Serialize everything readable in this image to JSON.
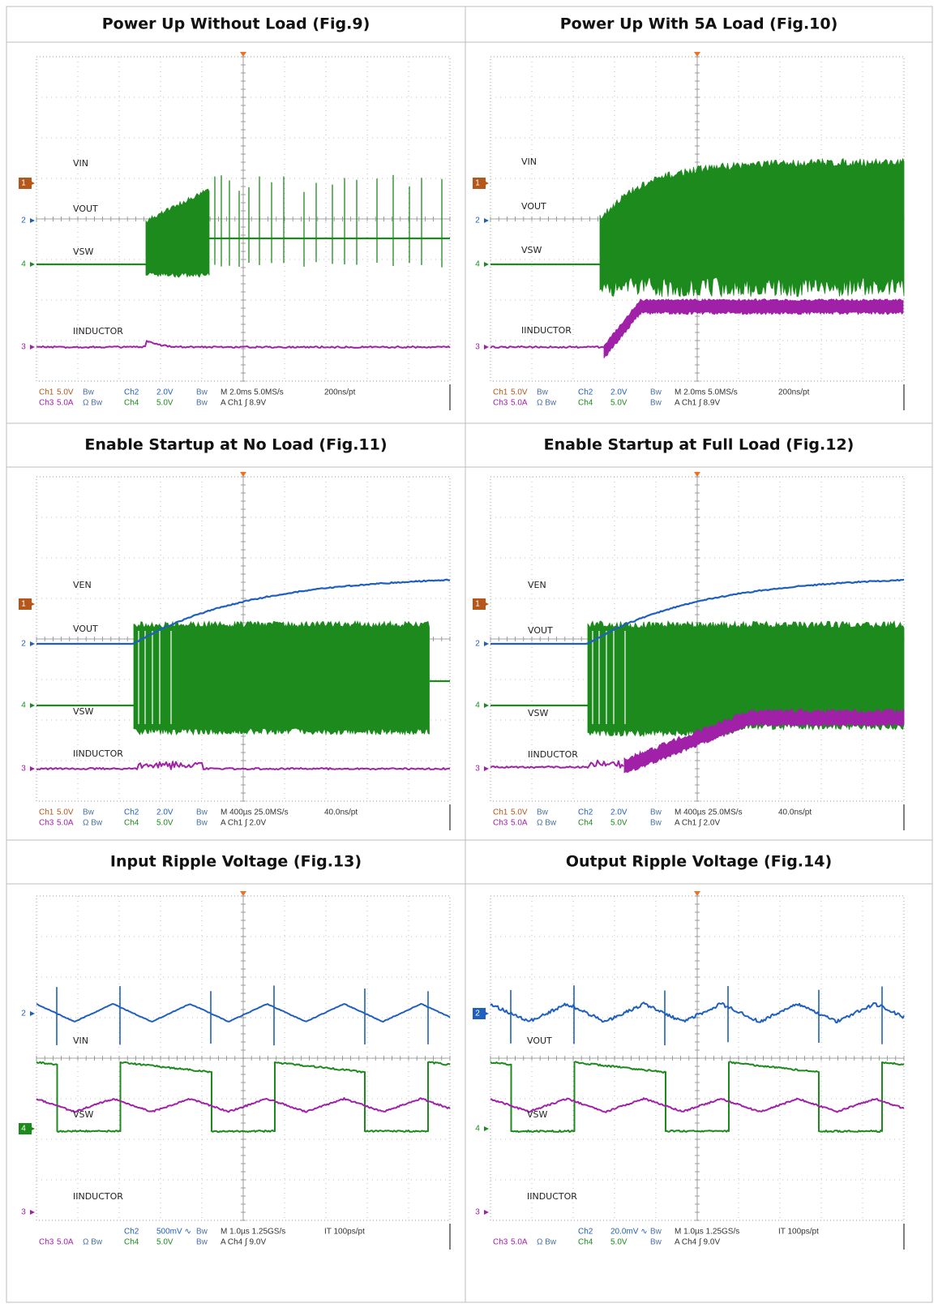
{
  "panels": [
    {
      "title": "Power Up Without Load (Fig.9)",
      "labels": [
        "VIN",
        "VOUT",
        "VSW",
        "IINDUCTOR"
      ],
      "markers": [
        "1",
        "2",
        "4",
        "3"
      ],
      "readout": [
        [
          "Ch1",
          "5.0V",
          "Bw",
          "Ch2",
          "2.0V",
          "Bw",
          "M 2.0ms 5.0MS/s",
          "200ns/pt"
        ],
        [
          "Ch3",
          "5.0A",
          "Ω Bw",
          "Ch4",
          "5.0V",
          "Bw",
          "A Ch1 ∫ 8.9V"
        ]
      ]
    },
    {
      "title": "Power Up With 5A Load (Fig.10)",
      "labels": [
        "VIN",
        "VOUT",
        "VSW",
        "IINDUCTOR"
      ],
      "markers": [
        "1",
        "2",
        "4",
        "3"
      ],
      "readout": [
        [
          "Ch1",
          "5.0V",
          "Bw",
          "Ch2",
          "2.0V",
          "Bw",
          "M 2.0ms 5.0MS/s",
          "200ns/pt"
        ],
        [
          "Ch3",
          "5.0A",
          "Ω Bw",
          "Ch4",
          "5.0V",
          "Bw",
          "A Ch1 ∫ 8.9V"
        ]
      ]
    },
    {
      "title": "Enable Startup at No Load (Fig.11)",
      "labels": [
        "VEN",
        "VOUT",
        "VSW",
        "IINDUCTOR"
      ],
      "markers": [
        "1",
        "2",
        "4",
        "3"
      ],
      "readout": [
        [
          "Ch1",
          "5.0V",
          "Bw",
          "Ch2",
          "2.0V",
          "Bw",
          "M 400µs 25.0MS/s",
          "40.0ns/pt"
        ],
        [
          "Ch3",
          "5.0A",
          "Ω Bw",
          "Ch4",
          "5.0V",
          "Bw",
          "A Ch1 ∫ 2.0V"
        ]
      ]
    },
    {
      "title": "Enable Startup at Full Load (Fig.12)",
      "labels": [
        "VEN",
        "VOUT",
        "VSW",
        "IINDUCTOR"
      ],
      "markers": [
        "1",
        "2",
        "4",
        "3"
      ],
      "readout": [
        [
          "Ch1",
          "5.0V",
          "Bw",
          "Ch2",
          "2.0V",
          "Bw",
          "M 400µs 25.0MS/s",
          "40.0ns/pt"
        ],
        [
          "Ch3",
          "5.0A",
          "Ω Bw",
          "Ch4",
          "5.0V",
          "Bw",
          "A Ch1 ∫ 2.0V"
        ]
      ]
    },
    {
      "title": "Input Ripple Voltage (Fig.13)",
      "labels": [
        "VIN",
        "VSW",
        "IINDUCTOR"
      ],
      "markers": [
        "2",
        "4",
        "3"
      ],
      "readout": [
        [
          null,
          null,
          null,
          "Ch2",
          "500mV ∿",
          "Bw",
          "M 1.0µs 1.25GS/s",
          "IT 100ps/pt"
        ],
        [
          "Ch3",
          "5.0A",
          "Ω Bw",
          "Ch4",
          "5.0V",
          "Bw",
          "A Ch4 ∫ 9.0V"
        ]
      ]
    },
    {
      "title": "Output Ripple Voltage (Fig.14)",
      "labels": [
        "VOUT",
        "VSW",
        "IINDUCTOR"
      ],
      "markers": [
        "2",
        "4",
        "3"
      ],
      "readout": [
        [
          null,
          null,
          null,
          "Ch2",
          "20.0mV ∿",
          "Bw",
          "M 1.0µs 1.25GS/s",
          "IT 100ps/pt"
        ],
        [
          "Ch3",
          "5.0A",
          "Ω Bw",
          "Ch4",
          "5.0V",
          "Bw",
          "A Ch4 ∫ 9.0V"
        ]
      ]
    }
  ]
}
